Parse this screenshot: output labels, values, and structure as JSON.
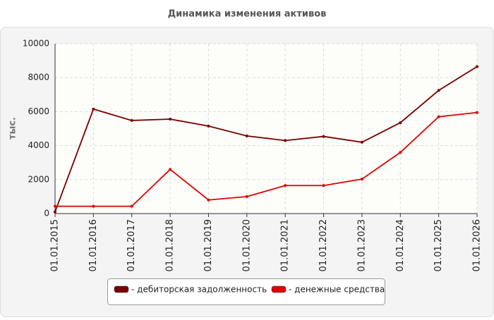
{
  "chart_data": {
    "type": "line",
    "title": "Динамика изменения активов",
    "y_label": "тыс.",
    "categories": [
      "01.01.2015",
      "01.01.2016",
      "01.01.2017",
      "01.01.2018",
      "01.01.2019",
      "01.01.2020",
      "01.01.2021",
      "01.01.2022",
      "01.01.2023",
      "01.01.2024",
      "01.01.2025",
      "01.01.2026"
    ],
    "series": [
      {
        "name": "- дебиторская задолженность",
        "color": "#7a0000",
        "values": [
          100,
          6150,
          5480,
          5560,
          5150,
          4570,
          4300,
          4540,
          4200,
          5350,
          7250,
          8650
        ]
      },
      {
        "name": "- денежные средства",
        "color": "#e00000",
        "values": [
          430,
          430,
          430,
          2600,
          800,
          1000,
          1650,
          1650,
          2030,
          3600,
          5700,
          5950
        ]
      }
    ],
    "ylim": [
      0,
      10000
    ],
    "yticks": [
      0,
      2000,
      4000,
      6000,
      8000,
      10000
    ],
    "grid": true
  }
}
